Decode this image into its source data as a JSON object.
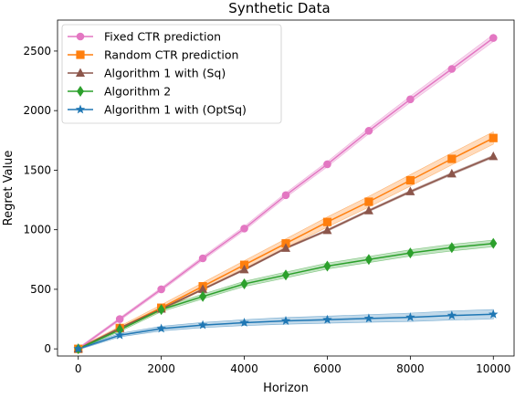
{
  "chart_data": {
    "type": "line",
    "title": "Synthetic Data",
    "xlabel": "Horizon",
    "ylabel": "Regret Value",
    "xlim": [
      -500,
      10500
    ],
    "ylim": [
      -60,
      2760
    ],
    "xticks": [
      0,
      2000,
      4000,
      6000,
      8000,
      10000
    ],
    "xtick_labels": [
      "0",
      "2000",
      "4000",
      "6000",
      "8000",
      "10000"
    ],
    "yticks": [
      0,
      500,
      1000,
      1500,
      2000,
      2500
    ],
    "ytick_labels": [
      "0",
      "500",
      "1000",
      "1500",
      "2000",
      "2500"
    ],
    "grid": false,
    "legend_position": "upper-left",
    "x": [
      0,
      1000,
      2000,
      3000,
      4000,
      5000,
      6000,
      7000,
      8000,
      9000,
      10000
    ],
    "series": [
      {
        "name": "Fixed CTR prediction",
        "color": "#e377c2",
        "marker": "circle",
        "values": [
          0,
          250,
          500,
          760,
          1010,
          1290,
          1550,
          1830,
          2095,
          2350,
          2610
        ],
        "band": [
          10,
          12,
          14,
          16,
          18,
          20,
          22,
          24,
          26,
          28,
          30
        ]
      },
      {
        "name": "Random CTR prediction",
        "color": "#ff7f0e",
        "marker": "square",
        "values": [
          0,
          175,
          345,
          525,
          705,
          885,
          1065,
          1235,
          1415,
          1595,
          1770
        ],
        "band": [
          8,
          15,
          25,
          30,
          35,
          38,
          42,
          45,
          48,
          50,
          52
        ]
      },
      {
        "name": "Algorithm 1 with (Sq)",
        "color": "#8c564b",
        "marker": "triangle",
        "values": [
          0,
          175,
          335,
          500,
          665,
          845,
          995,
          1160,
          1320,
          1470,
          1615
        ],
        "band": [
          4,
          5,
          6,
          7,
          8,
          8,
          9,
          9,
          10,
          10,
          10
        ]
      },
      {
        "name": "Algorithm 2",
        "color": "#2ca02c",
        "marker": "diamond",
        "values": [
          0,
          160,
          330,
          440,
          545,
          620,
          695,
          750,
          805,
          850,
          885
        ],
        "band": [
          8,
          15,
          18,
          20,
          22,
          24,
          25,
          26,
          27,
          28,
          28
        ]
      },
      {
        "name": "Algorithm 1 with (OptSq)",
        "color": "#1f77b4",
        "marker": "star",
        "values": [
          0,
          115,
          170,
          200,
          220,
          235,
          245,
          255,
          265,
          280,
          290
        ],
        "band": [
          8,
          15,
          20,
          22,
          25,
          28,
          30,
          32,
          35,
          38,
          40
        ]
      }
    ]
  }
}
